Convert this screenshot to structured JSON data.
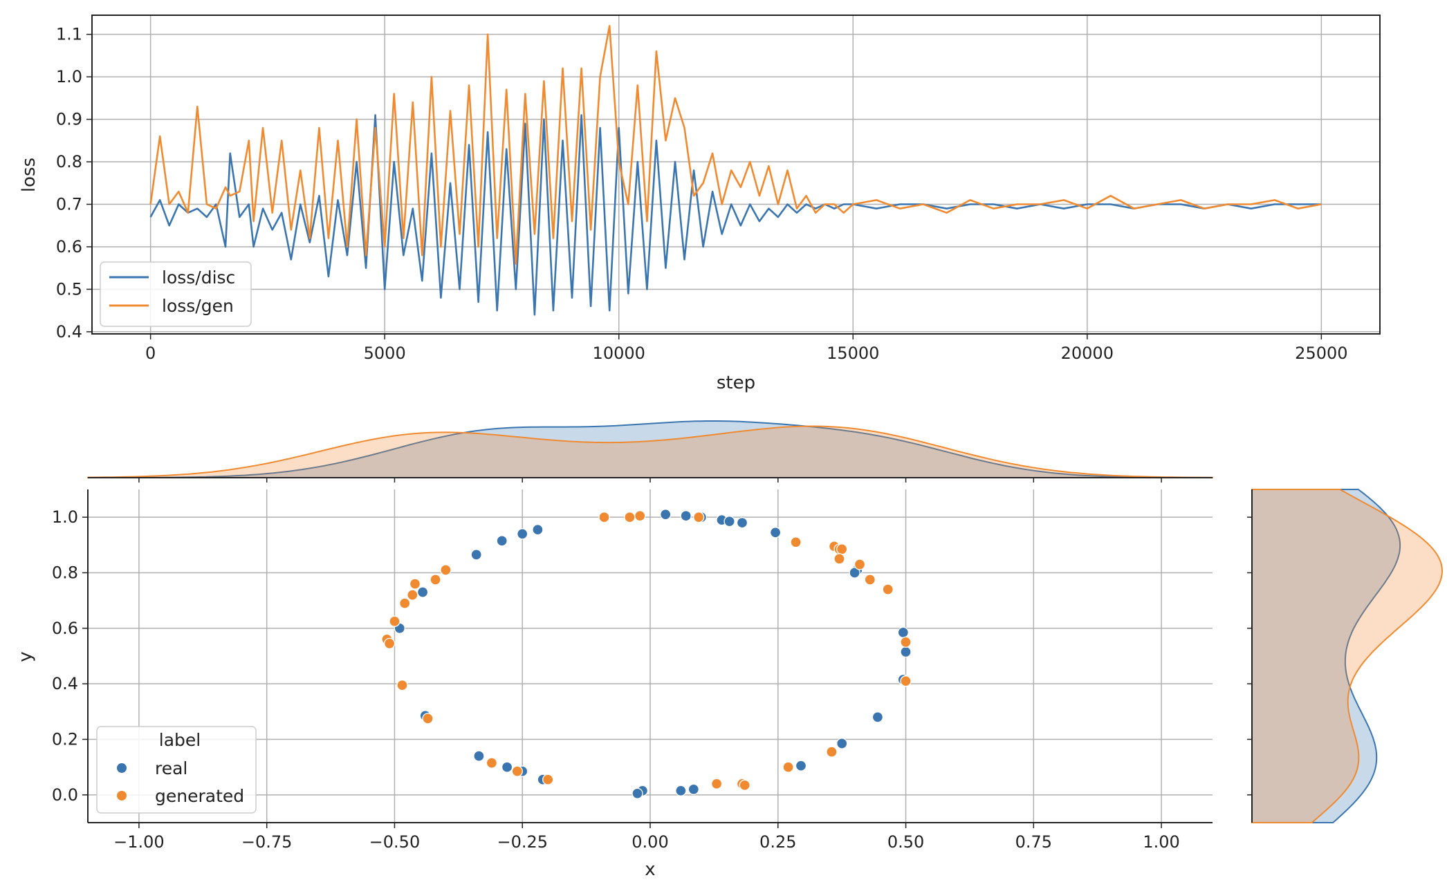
{
  "chart_data": [
    {
      "type": "line",
      "xlabel": "step",
      "ylabel": "loss",
      "xlim": [
        -1250,
        26250
      ],
      "ylim": [
        0.395,
        1.145
      ],
      "xticks": [
        0,
        5000,
        10000,
        15000,
        20000,
        25000
      ],
      "yticks": [
        0.4,
        0.5,
        0.6,
        0.7,
        0.8,
        0.9,
        1.0,
        1.1
      ],
      "grid": true,
      "legend_position": "lower-left",
      "series": [
        {
          "name": "loss/disc",
          "color": "#3a75b0",
          "x": [
            0,
            200,
            400,
            600,
            800,
            1000,
            1200,
            1400,
            1600,
            1700,
            1900,
            2100,
            2200,
            2400,
            2600,
            2800,
            3000,
            3200,
            3400,
            3600,
            3800,
            4000,
            4200,
            4400,
            4600,
            4800,
            5000,
            5200,
            5400,
            5600,
            5800,
            6000,
            6200,
            6400,
            6600,
            6800,
            7000,
            7200,
            7400,
            7600,
            7800,
            8000,
            8200,
            8400,
            8600,
            8800,
            9000,
            9200,
            9400,
            9600,
            9800,
            10000,
            10200,
            10400,
            10600,
            10800,
            11000,
            11200,
            11400,
            11600,
            11800,
            12000,
            12200,
            12400,
            12600,
            12800,
            13000,
            13200,
            13400,
            13600,
            13800,
            14000,
            14200,
            14400,
            14600,
            14800,
            15000,
            15500,
            16000,
            16500,
            17000,
            17500,
            18000,
            18500,
            19000,
            19500,
            20000,
            20500,
            21000,
            21500,
            22000,
            22500,
            23000,
            23500,
            24000,
            24500,
            25000
          ],
          "y": [
            0.67,
            0.71,
            0.65,
            0.7,
            0.68,
            0.69,
            0.67,
            0.7,
            0.6,
            0.82,
            0.67,
            0.7,
            0.6,
            0.69,
            0.64,
            0.68,
            0.57,
            0.7,
            0.61,
            0.72,
            0.53,
            0.71,
            0.58,
            0.8,
            0.55,
            0.91,
            0.5,
            0.8,
            0.58,
            0.69,
            0.52,
            0.82,
            0.48,
            0.75,
            0.5,
            0.84,
            0.47,
            0.87,
            0.45,
            0.83,
            0.5,
            0.89,
            0.44,
            0.9,
            0.45,
            0.85,
            0.48,
            0.91,
            0.46,
            0.88,
            0.45,
            0.88,
            0.49,
            0.8,
            0.5,
            0.85,
            0.55,
            0.8,
            0.57,
            0.78,
            0.6,
            0.73,
            0.63,
            0.7,
            0.65,
            0.7,
            0.66,
            0.69,
            0.67,
            0.7,
            0.68,
            0.7,
            0.69,
            0.7,
            0.69,
            0.7,
            0.7,
            0.69,
            0.7,
            0.7,
            0.69,
            0.7,
            0.7,
            0.69,
            0.7,
            0.69,
            0.7,
            0.7,
            0.69,
            0.7,
            0.7,
            0.69,
            0.7,
            0.69,
            0.7,
            0.7,
            0.7
          ]
        },
        {
          "name": "loss/gen",
          "color": "#f08a30",
          "x": [
            0,
            200,
            400,
            600,
            800,
            1000,
            1200,
            1400,
            1600,
            1700,
            1900,
            2100,
            2200,
            2400,
            2600,
            2800,
            3000,
            3200,
            3400,
            3600,
            3800,
            4000,
            4200,
            4400,
            4600,
            4800,
            5000,
            5200,
            5400,
            5600,
            5800,
            6000,
            6200,
            6400,
            6600,
            6800,
            7000,
            7200,
            7400,
            7600,
            7800,
            8000,
            8200,
            8400,
            8600,
            8800,
            9000,
            9200,
            9400,
            9600,
            9800,
            10000,
            10200,
            10400,
            10600,
            10800,
            11000,
            11200,
            11400,
            11600,
            11800,
            12000,
            12200,
            12400,
            12600,
            12800,
            13000,
            13200,
            13400,
            13600,
            13800,
            14000,
            14200,
            14400,
            14600,
            14800,
            15000,
            15500,
            16000,
            16500,
            17000,
            17500,
            18000,
            18500,
            19000,
            19500,
            20000,
            20500,
            21000,
            21500,
            22000,
            22500,
            23000,
            23500,
            24000,
            24500,
            25000
          ],
          "y": [
            0.7,
            0.86,
            0.7,
            0.73,
            0.68,
            0.93,
            0.7,
            0.69,
            0.74,
            0.72,
            0.73,
            0.85,
            0.66,
            0.88,
            0.68,
            0.85,
            0.64,
            0.78,
            0.62,
            0.88,
            0.62,
            0.85,
            0.6,
            0.9,
            0.58,
            0.88,
            0.6,
            0.96,
            0.62,
            0.94,
            0.58,
            1.0,
            0.6,
            0.92,
            0.63,
            0.98,
            0.6,
            1.1,
            0.62,
            0.97,
            0.56,
            0.96,
            0.63,
            0.99,
            0.62,
            1.02,
            0.66,
            1.02,
            0.64,
            1.0,
            1.12,
            0.8,
            0.7,
            0.98,
            0.66,
            1.06,
            0.85,
            0.95,
            0.88,
            0.72,
            0.75,
            0.82,
            0.7,
            0.78,
            0.74,
            0.8,
            0.72,
            0.79,
            0.7,
            0.78,
            0.69,
            0.72,
            0.68,
            0.7,
            0.7,
            0.68,
            0.7,
            0.71,
            0.69,
            0.7,
            0.68,
            0.71,
            0.69,
            0.7,
            0.7,
            0.71,
            0.69,
            0.72,
            0.69,
            0.7,
            0.71,
            0.69,
            0.7,
            0.7,
            0.71,
            0.69,
            0.7
          ]
        }
      ]
    },
    {
      "type": "scatter",
      "xlabel": "x",
      "ylabel": "y",
      "xlim": [
        -1.1,
        1.1
      ],
      "ylim": [
        -0.1,
        1.1
      ],
      "xticks": [
        -1.0,
        -0.75,
        -0.5,
        -0.25,
        0.0,
        0.25,
        0.5,
        0.75,
        1.0
      ],
      "xtick_labels": [
        "−1.00",
        "−0.75",
        "−0.50",
        "−0.25",
        "0.00",
        "0.25",
        "0.50",
        "0.75",
        "1.00"
      ],
      "yticks": [
        0.0,
        0.2,
        0.4,
        0.6,
        0.8,
        1.0
      ],
      "grid": true,
      "legend_title": "label",
      "legend_position": "lower-left",
      "marginals": "kde (top: x density, right: y density)",
      "series": [
        {
          "name": "real",
          "color": "#3a75b0",
          "x": [
            0.03,
            0.07,
            0.1,
            0.14,
            0.155,
            0.18,
            0.245,
            -0.22,
            -0.25,
            -0.29,
            -0.34,
            -0.445,
            -0.49,
            -0.44,
            -0.335,
            -0.28,
            -0.25,
            -0.21,
            -0.015,
            -0.025,
            0.06,
            0.085,
            0.295,
            0.375,
            0.445,
            0.495,
            0.5,
            0.495,
            0.405,
            0.4
          ],
          "y": [
            1.01,
            1.005,
            1.0,
            0.99,
            0.985,
            0.98,
            0.945,
            0.955,
            0.94,
            0.915,
            0.865,
            0.73,
            0.6,
            0.285,
            0.14,
            0.1,
            0.085,
            0.055,
            0.015,
            0.005,
            0.015,
            0.02,
            0.105,
            0.185,
            0.28,
            0.585,
            0.515,
            0.415,
            0.81,
            0.8
          ]
        },
        {
          "name": "generated",
          "color": "#f08a30",
          "x": [
            -0.09,
            -0.04,
            -0.02,
            0.095,
            0.285,
            0.36,
            0.37,
            0.375,
            0.37,
            0.41,
            0.43,
            0.465,
            0.5,
            0.5,
            -0.4,
            -0.42,
            -0.46,
            -0.465,
            -0.48,
            -0.5,
            -0.515,
            -0.51,
            -0.485,
            -0.435,
            -0.31,
            -0.26,
            -0.2,
            0.13,
            0.18,
            0.185,
            0.27,
            0.355
          ],
          "y": [
            1.0,
            1.0,
            1.005,
            1.0,
            0.91,
            0.895,
            0.885,
            0.885,
            0.85,
            0.83,
            0.775,
            0.74,
            0.55,
            0.41,
            0.81,
            0.775,
            0.76,
            0.72,
            0.69,
            0.625,
            0.56,
            0.545,
            0.395,
            0.275,
            0.115,
            0.085,
            0.055,
            0.04,
            0.04,
            0.035,
            0.1,
            0.155
          ]
        }
      ]
    }
  ],
  "legend1": {
    "items": [
      "loss/disc",
      "loss/gen"
    ]
  },
  "legend2": {
    "title": "label",
    "items": [
      "real",
      "generated"
    ]
  }
}
